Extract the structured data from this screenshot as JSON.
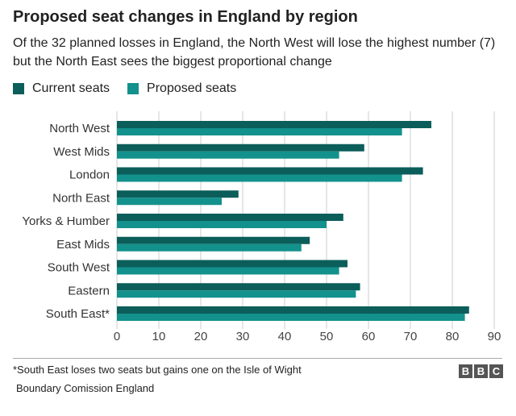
{
  "header": {
    "title": "Proposed seat changes in England by region",
    "subtitle": "Of the 32 planned losses in England, the North West will lose the highest number (7) but the North East sees the biggest proportional change"
  },
  "legend": {
    "current_label": "Current seats",
    "proposed_label": "Proposed seats"
  },
  "colors": {
    "current": "#0b5e5a",
    "proposed": "#13918c",
    "grid": "#cccccc",
    "axis_text": "#444444"
  },
  "chart_data": {
    "type": "bar",
    "orientation": "horizontal",
    "categories": [
      "North West",
      "West Mids",
      "London",
      "North East",
      "Yorks & Humber",
      "East Mids",
      "South West",
      "Eastern",
      "South East*"
    ],
    "series": [
      {
        "name": "Current seats",
        "values": [
          75,
          59,
          73,
          29,
          54,
          46,
          55,
          58,
          84
        ]
      },
      {
        "name": "Proposed seats",
        "values": [
          68,
          53,
          68,
          25,
          50,
          44,
          53,
          57,
          83
        ]
      }
    ],
    "xlim": [
      0,
      90
    ],
    "xticks": [
      0,
      10,
      20,
      30,
      40,
      50,
      60,
      70,
      80,
      90
    ],
    "grid": true,
    "legend_position": "top-left"
  },
  "footer": {
    "footnote": "*South East loses two seats but gains one on the Isle of Wight",
    "source": "Boundary Comission England",
    "logo_letters": [
      "B",
      "B",
      "C"
    ]
  }
}
